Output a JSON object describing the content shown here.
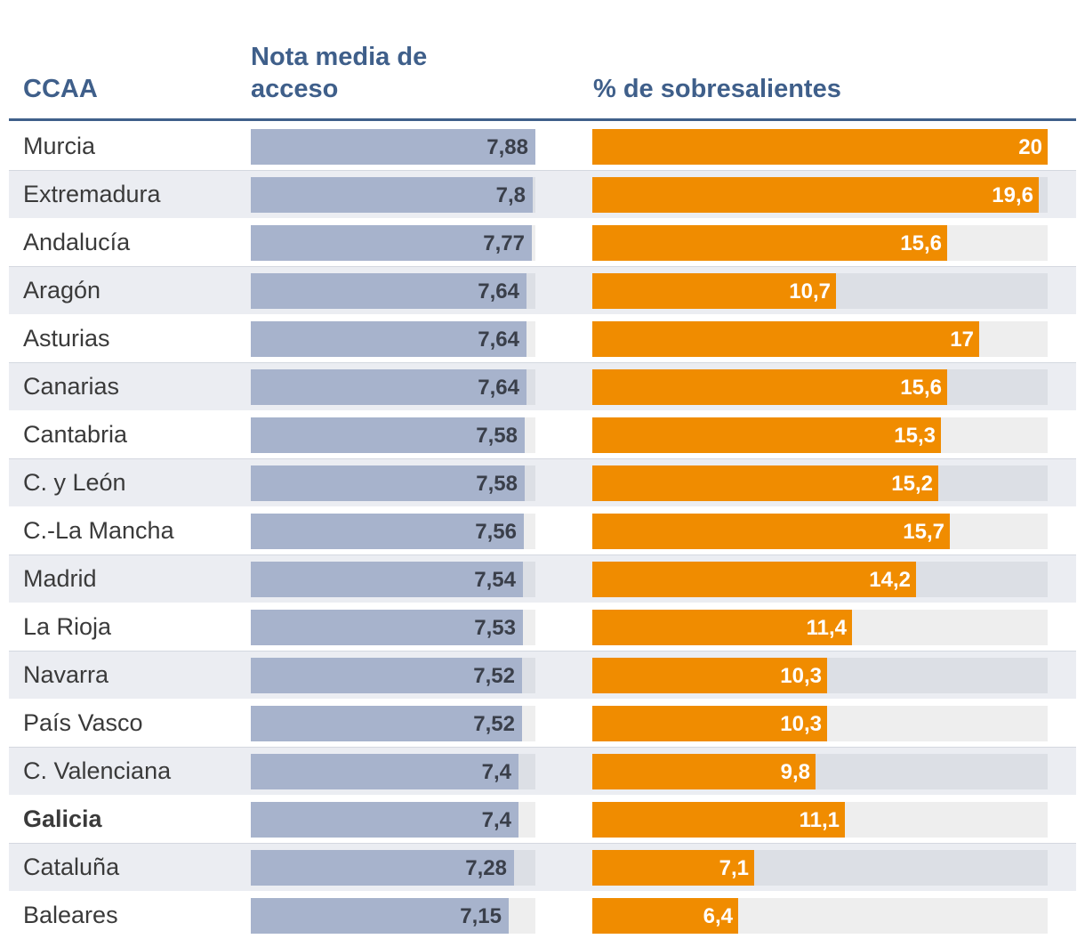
{
  "chart_data": {
    "type": "table",
    "columns": {
      "region": "CCAA",
      "nota_line1": "Nota media de",
      "nota_line2": "acceso",
      "pct": "% de sobresalientes"
    },
    "nota_max": 7.88,
    "pct_max": 20,
    "rows": [
      {
        "region": "Murcia",
        "nota": 7.88,
        "nota_label": "7,88",
        "pct": 20,
        "pct_label": "20",
        "bold": false
      },
      {
        "region": "Extremadura",
        "nota": 7.8,
        "nota_label": "7,8",
        "pct": 19.6,
        "pct_label": "19,6",
        "bold": false
      },
      {
        "region": "Andalucía",
        "nota": 7.77,
        "nota_label": "7,77",
        "pct": 15.6,
        "pct_label": "15,6",
        "bold": false
      },
      {
        "region": "Aragón",
        "nota": 7.64,
        "nota_label": "7,64",
        "pct": 10.7,
        "pct_label": "10,7",
        "bold": false
      },
      {
        "region": "Asturias",
        "nota": 7.64,
        "nota_label": "7,64",
        "pct": 17,
        "pct_label": "17",
        "bold": false
      },
      {
        "region": "Canarias",
        "nota": 7.64,
        "nota_label": "7,64",
        "pct": 15.6,
        "pct_label": "15,6",
        "bold": false
      },
      {
        "region": "Cantabria",
        "nota": 7.58,
        "nota_label": "7,58",
        "pct": 15.3,
        "pct_label": "15,3",
        "bold": false
      },
      {
        "region": "C. y León",
        "nota": 7.58,
        "nota_label": "7,58",
        "pct": 15.2,
        "pct_label": "15,2",
        "bold": false
      },
      {
        "region": "C.-La Mancha",
        "nota": 7.56,
        "nota_label": "7,56",
        "pct": 15.7,
        "pct_label": "15,7",
        "bold": false
      },
      {
        "region": "Madrid",
        "nota": 7.54,
        "nota_label": "7,54",
        "pct": 14.2,
        "pct_label": "14,2",
        "bold": false
      },
      {
        "region": "La Rioja",
        "nota": 7.53,
        "nota_label": "7,53",
        "pct": 11.4,
        "pct_label": "11,4",
        "bold": false
      },
      {
        "region": "Navarra",
        "nota": 7.52,
        "nota_label": "7,52",
        "pct": 10.3,
        "pct_label": "10,3",
        "bold": false
      },
      {
        "region": "País Vasco",
        "nota": 7.52,
        "nota_label": "7,52",
        "pct": 10.3,
        "pct_label": "10,3",
        "bold": false
      },
      {
        "region": "C. Valenciana",
        "nota": 7.4,
        "nota_label": "7,4",
        "pct": 9.8,
        "pct_label": "9,8",
        "bold": false
      },
      {
        "region": "Galicia",
        "nota": 7.4,
        "nota_label": "7,4",
        "pct": 11.1,
        "pct_label": "11,1",
        "bold": true
      },
      {
        "region": "Cataluña",
        "nota": 7.28,
        "nota_label": "7,28",
        "pct": 7.1,
        "pct_label": "7,1",
        "bold": false
      },
      {
        "region": "Baleares",
        "nota": 7.15,
        "nota_label": "7,15",
        "pct": 6.4,
        "pct_label": "6,4",
        "bold": false
      }
    ],
    "colors": {
      "header": "#3f5f8a",
      "nota_bar": "#a7b3cc",
      "pct_bar": "#f08c00"
    }
  }
}
